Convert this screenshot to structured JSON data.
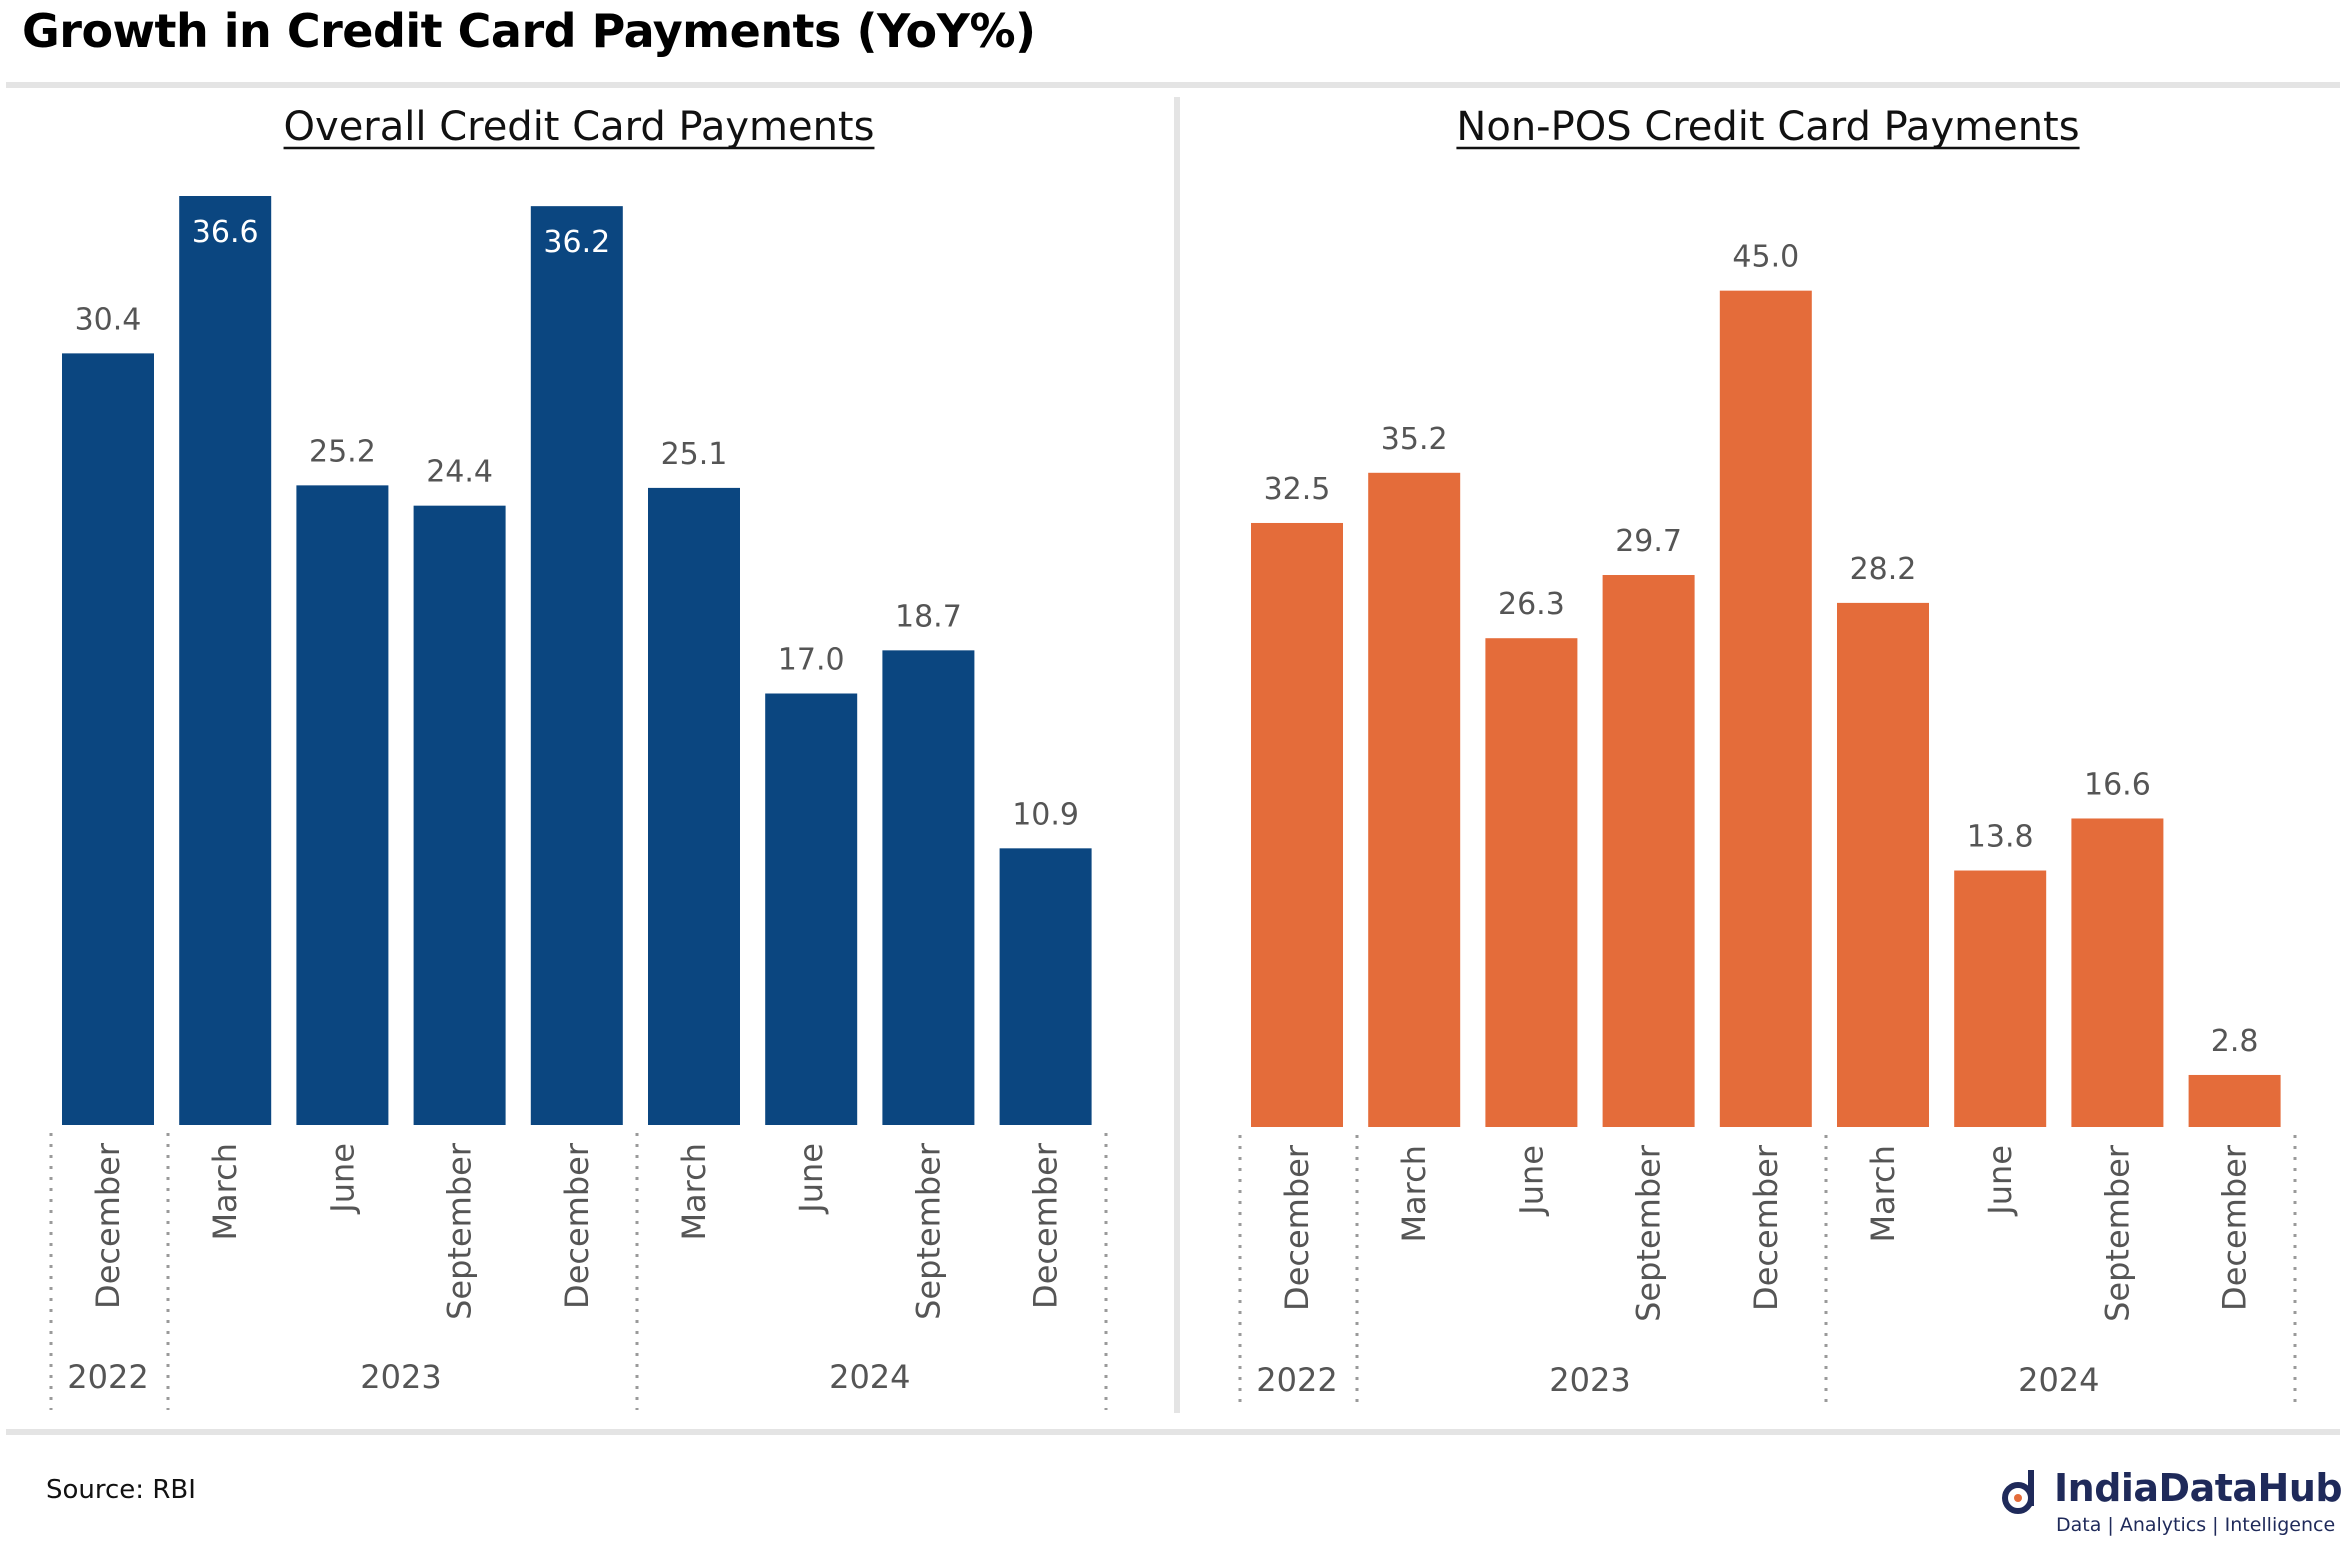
{
  "title": "Growth in Credit Card Payments (YoY%)",
  "source": "Source: RBI",
  "logo": {
    "name": "IndiaDataHub",
    "tagline": "Data | Analytics | Intelligence",
    "icon": "indiadatahub-logo-icon",
    "color": "#1f2a5a"
  },
  "chart_data": [
    {
      "type": "bar",
      "title": "Overall Credit Card Payments",
      "xlabel": "",
      "ylabel": "",
      "categories": [
        "December",
        "March",
        "June",
        "September",
        "December",
        "March",
        "June",
        "September",
        "December"
      ],
      "years": [
        {
          "label": "2022",
          "count": 1
        },
        {
          "label": "2023",
          "count": 4
        },
        {
          "label": "2024",
          "count": 4
        }
      ],
      "values": [
        30.4,
        36.6,
        25.2,
        24.4,
        36.2,
        25.1,
        17.0,
        18.7,
        10.9
      ],
      "value_labels": [
        "30.4",
        "36.6",
        "25.2",
        "24.4",
        "36.2",
        "25.1",
        "17.0",
        "18.7",
        "10.9"
      ],
      "ylim": [
        0,
        36.6
      ],
      "color": "#0b4680",
      "grid": false,
      "legend": "none"
    },
    {
      "type": "bar",
      "title": "Non-POS Credit Card Payments",
      "xlabel": "",
      "ylabel": "",
      "categories": [
        "December",
        "March",
        "June",
        "September",
        "December",
        "March",
        "June",
        "September",
        "December"
      ],
      "years": [
        {
          "label": "2022",
          "count": 1
        },
        {
          "label": "2023",
          "count": 4
        },
        {
          "label": "2024",
          "count": 4
        }
      ],
      "values": [
        32.5,
        35.2,
        26.3,
        29.7,
        45.0,
        28.2,
        13.8,
        16.6,
        2.8
      ],
      "value_labels": [
        "32.5",
        "35.2",
        "26.3",
        "29.7",
        "45.0",
        "28.2",
        "13.8",
        "16.6",
        "2.8"
      ],
      "ylim": [
        0,
        50.9
      ],
      "color": "#e46c3a",
      "grid": false,
      "legend": "none"
    }
  ]
}
